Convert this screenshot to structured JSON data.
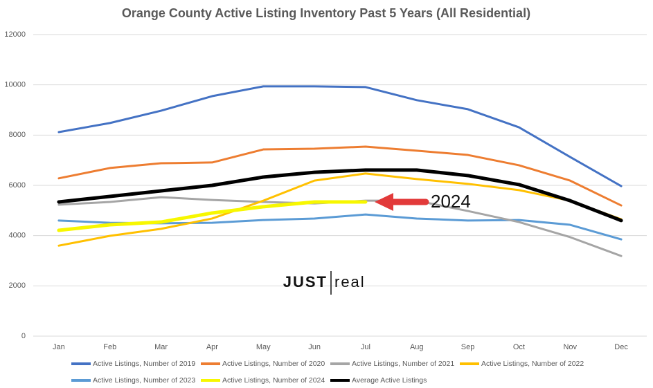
{
  "chart_data": {
    "type": "line",
    "title": "Orange County Active Listing Inventory Past 5 Years (All Residential)",
    "categories": [
      "Jan",
      "Feb",
      "Mar",
      "Apr",
      "May",
      "Jun",
      "Jul",
      "Aug",
      "Sep",
      "Oct",
      "Nov",
      "Dec"
    ],
    "series": [
      {
        "name": "Active Listings, Number of 2019",
        "color": "#4472c4",
        "values": [
          8120,
          8480,
          8970,
          9550,
          9940,
          9940,
          9910,
          9390,
          9030,
          8310,
          7130,
          5970
        ]
      },
      {
        "name": "Active Listings, Number of 2020",
        "color": "#ed7d31",
        "values": [
          6280,
          6690,
          6880,
          6910,
          7430,
          7460,
          7540,
          7380,
          7210,
          6800,
          6190,
          5200
        ]
      },
      {
        "name": "Active Listings, Number of 2021",
        "color": "#a5a5a5",
        "values": [
          5230,
          5340,
          5530,
          5420,
          5340,
          5280,
          5390,
          5390,
          4980,
          4540,
          3940,
          3190
        ]
      },
      {
        "name": "Active Listings, Number of 2022",
        "color": "#ffc000",
        "values": [
          3600,
          3990,
          4270,
          4680,
          5390,
          6190,
          6470,
          6250,
          6060,
          5810,
          5390,
          4650
        ]
      },
      {
        "name": "Active Listings, Number of 2023",
        "color": "#5b9bd5",
        "values": [
          4600,
          4510,
          4490,
          4510,
          4620,
          4680,
          4840,
          4680,
          4600,
          4620,
          4430,
          3850
        ]
      },
      {
        "name": "Active Listings, Number of 2024",
        "color": "#f7f700",
        "values": [
          4210,
          4430,
          4540,
          4900,
          5150,
          5340,
          5340,
          null,
          null,
          null,
          null,
          null
        ]
      },
      {
        "name": "Average Active Listings",
        "color": "#000000",
        "values": [
          5340,
          5560,
          5780,
          6000,
          6330,
          6520,
          6610,
          6610,
          6390,
          6030,
          5390,
          4600
        ]
      }
    ],
    "ylim": [
      0,
      12000
    ],
    "yticks": [
      0,
      2000,
      4000,
      6000,
      8000,
      10000,
      12000
    ],
    "grid": true,
    "legend": "bottom",
    "annotations": [
      "2024"
    ],
    "logo": [
      "JUST",
      "real"
    ]
  }
}
